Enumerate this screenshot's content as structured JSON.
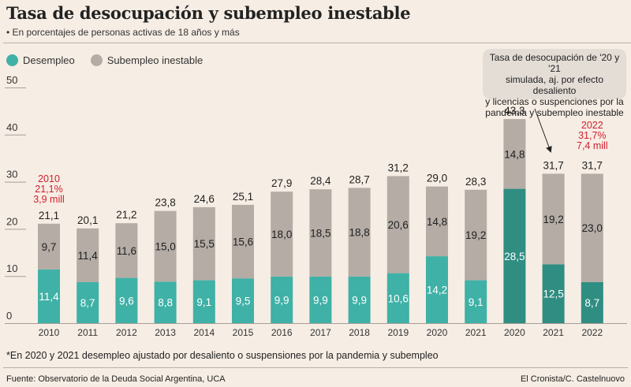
{
  "header": {
    "title": "Tasa de desocupación y subempleo inestable",
    "subtitle": "• En porcentajes de personas activas de 18 años y más"
  },
  "legend": [
    {
      "label": "Desempleo",
      "color": "#3fb1a6"
    },
    {
      "label": "Subempleo inestable",
      "color": "#b4aca5"
    }
  ],
  "colors": {
    "desempleo": "#3fb1a6",
    "desempleo_ajustado": "#2f8d82",
    "subempleo": "#b4aca5",
    "highlight_text": "#d11f2e",
    "background": "#f6ede4"
  },
  "annotations": {
    "note": "Tasa de desocupación de '20 y '21 simulada, aj. por efecto desaliento y licencias o suspenciones por la pandemia y subempleo inestable",
    "note_lines": [
      "Tasa de desocupación de '20 y '21",
      "simulada, aj. por efecto desaliento",
      "y licencias o suspenciones por la",
      "pandemia y subempleo inestable"
    ],
    "callout_2010": [
      "2010",
      "21,1%",
      "3,9 mill"
    ],
    "callout_2022": [
      "2022",
      "31,7%",
      "7,4 mill"
    ]
  },
  "footer": {
    "footnote": "*En 2020 y 2021 desempleo ajustado por desaliento o suspensiones por la pandemia y subempleo",
    "source": "Fuente: Observatorio de la Deuda Social Argentina, UCA",
    "credit": "El Cronista/C. Castelnuovo"
  },
  "chart_data": {
    "type": "bar",
    "stacked": true,
    "title": "Tasa de desocupación y subempleo inestable",
    "subtitle": "En porcentajes de personas activas de 18 años y más",
    "xlabel": "",
    "ylabel": "",
    "ylim": [
      0,
      50
    ],
    "yticks": [
      "0",
      "10",
      "20",
      "30",
      "40",
      "50"
    ],
    "yticks_values": [
      0,
      10,
      20,
      30,
      40,
      50
    ],
    "grid": false,
    "legend_position": "top-left",
    "categories": [
      "2010",
      "2011",
      "2012",
      "2013",
      "2014",
      "2015",
      "2016",
      "2017",
      "2018",
      "2019",
      "2020",
      "2021",
      "2020",
      "2021",
      "2022"
    ],
    "adjusted": [
      false,
      false,
      false,
      false,
      false,
      false,
      false,
      false,
      false,
      false,
      false,
      false,
      true,
      true,
      true
    ],
    "series": [
      {
        "name": "Desempleo",
        "values": [
          11.4,
          8.7,
          9.6,
          8.8,
          9.1,
          9.5,
          9.9,
          9.9,
          9.9,
          10.6,
          14.2,
          9.1,
          28.5,
          12.5,
          8.7
        ],
        "labels": [
          "11,4",
          "8,7",
          "9,6",
          "8,8",
          "9,1",
          "9,5",
          "9,9",
          "9,9",
          "9,9",
          "10,6",
          "14,2",
          "9,1",
          "28,5",
          "12,5",
          "8,7"
        ]
      },
      {
        "name": "Subempleo inestable",
        "values": [
          9.7,
          11.4,
          11.6,
          15.0,
          15.5,
          15.6,
          18.0,
          18.5,
          18.8,
          20.6,
          14.8,
          19.2,
          14.8,
          19.2,
          23.0
        ],
        "labels": [
          "9,7",
          "11,4",
          "11,6",
          "15,0",
          "15,5",
          "15,6",
          "18,0",
          "18,5",
          "18,8",
          "20,6",
          "14,8",
          "19,2",
          "14,8",
          "19,2",
          "23,0"
        ]
      }
    ],
    "totals": [
      21.1,
      20.1,
      21.2,
      23.8,
      24.6,
      25.1,
      27.9,
      28.4,
      28.7,
      31.2,
      29.0,
      28.3,
      43.3,
      31.7,
      31.7
    ],
    "total_labels": [
      "21,1",
      "20,1",
      "21,2",
      "23,8",
      "24,6",
      "25,1",
      "27,9",
      "28,4",
      "28,7",
      "31,2",
      "29,0",
      "28,3",
      "43,3",
      "31,7",
      "31,7"
    ]
  }
}
